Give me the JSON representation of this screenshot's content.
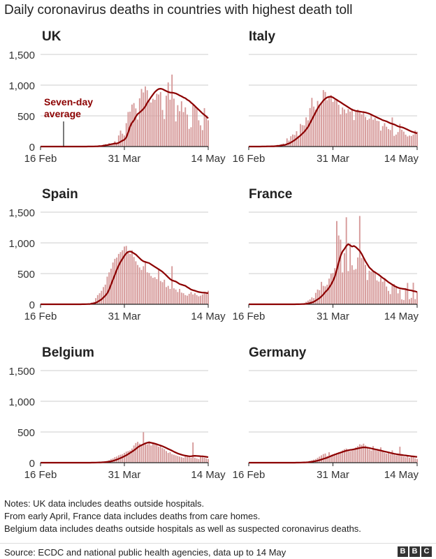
{
  "title": "Daily coronavirus deaths in countries with highest death toll",
  "annotation": [
    "Seven-day",
    "average"
  ],
  "colors": {
    "bar": "#d69a9a",
    "average": "#8c0000",
    "grid": "#cccccc",
    "axis": "#222222"
  },
  "chart_data": [
    {
      "type": "bar",
      "title": "UK",
      "ylim": [
        0,
        1500
      ],
      "yticks": [
        0,
        500,
        1000,
        1500
      ],
      "xlim_days": 88,
      "xticks": [
        {
          "label": "16 Feb",
          "day": 0
        },
        {
          "label": "31 Mar",
          "day": 44
        },
        {
          "label": "14 May",
          "day": 88
        }
      ],
      "bar_start_day": 0,
      "values": [
        0,
        0,
        0,
        0,
        0,
        0,
        0,
        0,
        0,
        0,
        0,
        0,
        0,
        0,
        0,
        0,
        0,
        0,
        0,
        0,
        0,
        0,
        0,
        0,
        0,
        1,
        2,
        2,
        1,
        10,
        14,
        20,
        16,
        33,
        40,
        33,
        56,
        48,
        54,
        87,
        41,
        181,
        260,
        209,
        180,
        381,
        563,
        569,
        684,
        708,
        621,
        439,
        786,
        938,
        881,
        980,
        917,
        737,
        717,
        778,
        761,
        861,
        847,
        888,
        596,
        449,
        828,
        1044,
        763,
        1172,
        780,
        410,
        674,
        576,
        737,
        562,
        639,
        520,
        288,
        315,
        693,
        649,
        621,
        428,
        346,
        268,
        626,
        494,
        428
      ],
      "average": [
        0,
        0,
        0,
        0,
        0,
        0,
        0,
        0,
        0,
        0,
        0,
        0,
        0,
        0,
        0,
        0,
        0,
        0,
        0,
        0,
        0,
        0,
        0,
        0,
        0,
        1,
        1,
        1,
        2,
        3,
        5,
        7,
        9,
        14,
        19,
        24,
        31,
        38,
        43,
        51,
        50,
        60,
        78,
        97,
        111,
        148,
        231,
        327,
        389,
        425,
        487,
        532,
        555,
        582,
        614,
        654,
        712,
        758,
        805,
        847,
        887,
        917,
        937,
        942,
        935,
        919,
        903,
        890,
        880,
        878,
        873,
        865,
        850,
        832,
        818,
        800,
        786,
        763,
        745,
        715,
        690,
        660,
        630,
        600,
        570,
        540,
        515,
        490,
        460
      ]
    },
    {
      "type": "bar",
      "title": "Italy",
      "ylim": [
        0,
        1500
      ],
      "yticks": [
        0,
        500,
        1000,
        1500
      ],
      "xlim_days": 88,
      "xticks": [
        {
          "label": "16 Feb",
          "day": 0
        },
        {
          "label": "31 Mar",
          "day": 44
        },
        {
          "label": "14 May",
          "day": 88
        }
      ],
      "bar_start_day": 0,
      "values": [
        0,
        0,
        0,
        0,
        0,
        0,
        1,
        2,
        3,
        2,
        5,
        4,
        8,
        5,
        18,
        27,
        28,
        41,
        49,
        36,
        133,
        97,
        168,
        196,
        189,
        250,
        175,
        368,
        349,
        345,
        475,
        427,
        627,
        793,
        651,
        601,
        743,
        683,
        712,
        919,
        889,
        756,
        812,
        837,
        727,
        760,
        766,
        681,
        525,
        636,
        604,
        542,
        610,
        570,
        619,
        431,
        566,
        602,
        578,
        525,
        575,
        482,
        433,
        454,
        534,
        437,
        464,
        420,
        415,
        260,
        333,
        382,
        323,
        285,
        269,
        474,
        174,
        195,
        236,
        369,
        274,
        243,
        194,
        165,
        179,
        172,
        195,
        262,
        242
      ],
      "average": [
        0,
        0,
        0,
        0,
        0,
        0,
        0,
        1,
        1,
        2,
        3,
        3,
        4,
        5,
        7,
        10,
        14,
        18,
        24,
        27,
        40,
        50,
        66,
        85,
        105,
        130,
        155,
        180,
        210,
        240,
        280,
        320,
        380,
        440,
        500,
        560,
        620,
        670,
        710,
        750,
        780,
        800,
        810,
        812,
        800,
        780,
        760,
        740,
        720,
        700,
        680,
        660,
        640,
        620,
        600,
        590,
        580,
        575,
        570,
        565,
        560,
        555,
        545,
        535,
        520,
        505,
        490,
        475,
        460,
        445,
        430,
        420,
        410,
        395,
        380,
        370,
        360,
        345,
        330,
        320,
        315,
        305,
        290,
        275,
        260,
        245,
        235,
        225,
        215
      ]
    },
    {
      "type": "bar",
      "title": "Spain",
      "ylim": [
        0,
        1500
      ],
      "yticks": [
        0,
        500,
        1000,
        1500
      ],
      "xlim_days": 88,
      "xticks": [
        {
          "label": "16 Feb",
          "day": 0
        },
        {
          "label": "31 Mar",
          "day": 44
        },
        {
          "label": "14 May",
          "day": 88
        }
      ],
      "bar_start_day": 0,
      "values": [
        0,
        0,
        0,
        0,
        0,
        0,
        0,
        0,
        0,
        0,
        0,
        0,
        0,
        0,
        0,
        0,
        0,
        0,
        0,
        0,
        0,
        1,
        2,
        3,
        5,
        8,
        10,
        30,
        40,
        100,
        150,
        180,
        220,
        280,
        320,
        450,
        520,
        580,
        680,
        740,
        760,
        820,
        850,
        880,
        940,
        950,
        840,
        820,
        880,
        770,
        700,
        640,
        600,
        560,
        620,
        700,
        520,
        510,
        460,
        430,
        440,
        410,
        570,
        380,
        360,
        400,
        280,
        300,
        250,
        620,
        260,
        240,
        200,
        250,
        190,
        180,
        150,
        140,
        170,
        200,
        160,
        180,
        150,
        130,
        140,
        160,
        190,
        180,
        220
      ],
      "average": [
        0,
        0,
        0,
        0,
        0,
        0,
        0,
        0,
        0,
        0,
        0,
        0,
        0,
        0,
        0,
        0,
        0,
        0,
        0,
        0,
        0,
        0,
        1,
        1,
        2,
        3,
        5,
        10,
        15,
        25,
        40,
        60,
        80,
        110,
        140,
        180,
        240,
        320,
        400,
        480,
        560,
        630,
        690,
        740,
        790,
        830,
        855,
        860,
        850,
        830,
        810,
        780,
        750,
        720,
        700,
        690,
        680,
        670,
        650,
        630,
        610,
        590,
        570,
        550,
        530,
        500,
        470,
        440,
        410,
        390,
        380,
        370,
        350,
        330,
        320,
        310,
        300,
        280,
        260,
        240,
        230,
        220,
        210,
        200,
        195,
        190,
        190,
        185,
        180
      ]
    },
    {
      "type": "bar",
      "title": "France",
      "ylim": [
        0,
        1500
      ],
      "yticks": [
        0,
        500,
        1000,
        1500
      ],
      "xlim_days": 88,
      "xticks": [
        {
          "label": "16 Feb",
          "day": 0
        },
        {
          "label": "31 Mar",
          "day": 44
        },
        {
          "label": "14 May",
          "day": 88
        }
      ],
      "bar_start_day": 0,
      "values": [
        0,
        0,
        0,
        0,
        0,
        0,
        0,
        0,
        0,
        0,
        0,
        0,
        0,
        0,
        0,
        0,
        0,
        0,
        0,
        0,
        0,
        0,
        0,
        1,
        1,
        2,
        5,
        10,
        15,
        20,
        40,
        60,
        80,
        112,
        100,
        186,
        240,
        230,
        365,
        300,
        292,
        319,
        418,
        499,
        509,
        588,
        1355,
        1120,
        1053,
        518,
        833,
        1417,
        541,
        987,
        635,
        561,
        574,
        762,
        1438,
        753,
        761,
        642,
        395,
        547,
        531,
        544,
        516,
        389,
        369,
        437,
        367,
        427,
        289,
        218,
        166,
        306,
        330,
        278,
        178,
        243,
        80,
        70,
        263,
        348,
        83,
        104,
        351,
        85,
        200
      ],
      "average": [
        0,
        0,
        0,
        0,
        0,
        0,
        0,
        0,
        0,
        0,
        0,
        0,
        0,
        0,
        0,
        0,
        0,
        0,
        0,
        0,
        0,
        0,
        0,
        0,
        0,
        1,
        1,
        2,
        3,
        5,
        8,
        12,
        20,
        30,
        40,
        60,
        80,
        100,
        130,
        160,
        200,
        230,
        270,
        320,
        380,
        450,
        560,
        680,
        790,
        860,
        900,
        950,
        980,
        960,
        940,
        950,
        930,
        900,
        870,
        820,
        760,
        700,
        650,
        600,
        570,
        540,
        520,
        500,
        480,
        455,
        430,
        410,
        385,
        360,
        340,
        320,
        300,
        285,
        270,
        260,
        255,
        250,
        245,
        235,
        230,
        225,
        215,
        210,
        200
      ]
    },
    {
      "type": "bar",
      "title": "Belgium",
      "ylim": [
        0,
        1500
      ],
      "yticks": [
        0,
        500,
        1000,
        1500
      ],
      "xlim_days": 88,
      "xticks": [
        {
          "label": "16 Feb",
          "day": 0
        },
        {
          "label": "31 Mar",
          "day": 44
        },
        {
          "label": "14 May",
          "day": 88
        }
      ],
      "bar_start_day": 0,
      "values": [
        0,
        0,
        0,
        0,
        0,
        0,
        0,
        0,
        0,
        0,
        0,
        0,
        0,
        0,
        0,
        0,
        0,
        0,
        0,
        0,
        0,
        0,
        0,
        0,
        0,
        0,
        1,
        2,
        3,
        5,
        6,
        10,
        12,
        15,
        20,
        30,
        40,
        60,
        70,
        90,
        100,
        120,
        130,
        140,
        160,
        180,
        190,
        200,
        230,
        280,
        320,
        340,
        310,
        280,
        496,
        320,
        300,
        350,
        280,
        330,
        310,
        290,
        260,
        270,
        240,
        220,
        190,
        160,
        170,
        140,
        130,
        120,
        110,
        100,
        90,
        80,
        120,
        100,
        90,
        80,
        330,
        80,
        70,
        60,
        100,
        90,
        80,
        70,
        60
      ],
      "average": [
        0,
        0,
        0,
        0,
        0,
        0,
        0,
        0,
        0,
        0,
        0,
        0,
        0,
        0,
        0,
        0,
        0,
        0,
        0,
        0,
        0,
        0,
        0,
        0,
        0,
        0,
        0,
        1,
        1,
        2,
        3,
        4,
        6,
        8,
        10,
        13,
        17,
        22,
        30,
        40,
        50,
        62,
        75,
        90,
        105,
        120,
        140,
        160,
        180,
        200,
        225,
        250,
        270,
        285,
        300,
        315,
        325,
        330,
        325,
        318,
        310,
        300,
        290,
        280,
        268,
        255,
        240,
        225,
        210,
        195,
        180,
        165,
        150,
        140,
        130,
        122,
        115,
        110,
        105,
        105,
        110,
        112,
        110,
        108,
        106,
        104,
        100,
        95,
        90
      ]
    },
    {
      "type": "bar",
      "title": "Germany",
      "ylim": [
        0,
        1500
      ],
      "yticks": [
        0,
        500,
        1000,
        1500
      ],
      "xlim_days": 88,
      "xticks": [
        {
          "label": "16 Feb",
          "day": 0
        },
        {
          "label": "31 Mar",
          "day": 44
        },
        {
          "label": "14 May",
          "day": 88
        }
      ],
      "bar_start_day": 0,
      "values": [
        0,
        0,
        0,
        0,
        0,
        0,
        0,
        0,
        0,
        0,
        0,
        0,
        0,
        0,
        0,
        0,
        0,
        0,
        0,
        0,
        0,
        0,
        0,
        0,
        1,
        2,
        3,
        5,
        6,
        10,
        15,
        20,
        30,
        40,
        50,
        60,
        80,
        100,
        120,
        140,
        150,
        110,
        170,
        130,
        140,
        150,
        160,
        170,
        180,
        200,
        220,
        230,
        210,
        190,
        200,
        230,
        250,
        270,
        300,
        290,
        310,
        280,
        240,
        220,
        200,
        270,
        230,
        210,
        190,
        250,
        180,
        160,
        150,
        170,
        140,
        200,
        130,
        120,
        140,
        260,
        110,
        100,
        90,
        120,
        80,
        100,
        90,
        70,
        60
      ],
      "average": [
        0,
        0,
        0,
        0,
        0,
        0,
        0,
        0,
        0,
        0,
        0,
        0,
        0,
        0,
        0,
        0,
        0,
        0,
        0,
        0,
        0,
        0,
        0,
        0,
        0,
        1,
        1,
        2,
        3,
        4,
        6,
        8,
        11,
        15,
        20,
        26,
        33,
        42,
        52,
        62,
        72,
        82,
        95,
        108,
        120,
        132,
        143,
        154,
        165,
        175,
        185,
        195,
        202,
        208,
        212,
        218,
        225,
        232,
        240,
        245,
        250,
        248,
        245,
        240,
        232,
        225,
        218,
        212,
        205,
        198,
        190,
        182,
        175,
        168,
        160,
        152,
        146,
        140,
        135,
        130,
        126,
        122,
        118,
        114,
        110,
        106,
        102,
        98,
        94
      ]
    }
  ],
  "notes": [
    "Notes: UK data includes deaths outside hospitals.",
    "From early April, France data includes deaths from care homes.",
    "Belgium data includes deaths outside hospitals as well as suspected coronavirus deaths."
  ],
  "source": "Source: ECDC and national public health agencies, data up to 14 May",
  "logo": [
    "B",
    "B",
    "C"
  ]
}
